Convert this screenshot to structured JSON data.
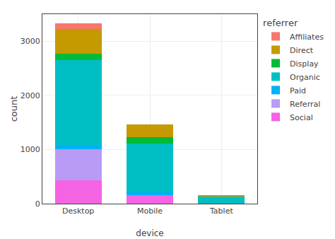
{
  "chart_data": {
    "type": "bar",
    "stacked": true,
    "categories": [
      "Desktop",
      "Mobile",
      "Tablet"
    ],
    "series": [
      {
        "name": "Social",
        "color": "#F564E3",
        "values": [
          430,
          155,
          0
        ]
      },
      {
        "name": "Referral",
        "color": "#B79BF5",
        "values": [
          570,
          0,
          0
        ]
      },
      {
        "name": "Paid",
        "color": "#00B0F6",
        "values": [
          90,
          55,
          0
        ]
      },
      {
        "name": "Organic",
        "color": "#00BFC4",
        "values": [
          1560,
          895,
          130
        ]
      },
      {
        "name": "Display",
        "color": "#00BA38",
        "values": [
          115,
          120,
          0
        ]
      },
      {
        "name": "Direct",
        "color": "#C49A00",
        "values": [
          460,
          240,
          28
        ]
      },
      {
        "name": "Affiliates",
        "color": "#F8766D",
        "values": [
          110,
          0,
          0
        ]
      }
    ],
    "xlabel": "device",
    "ylabel": "count",
    "legend_title": "referrer",
    "legend": "right",
    "ylim": [
      0,
      3500
    ],
    "yticks": [
      0,
      1000,
      2000,
      3000
    ],
    "grid": true
  }
}
